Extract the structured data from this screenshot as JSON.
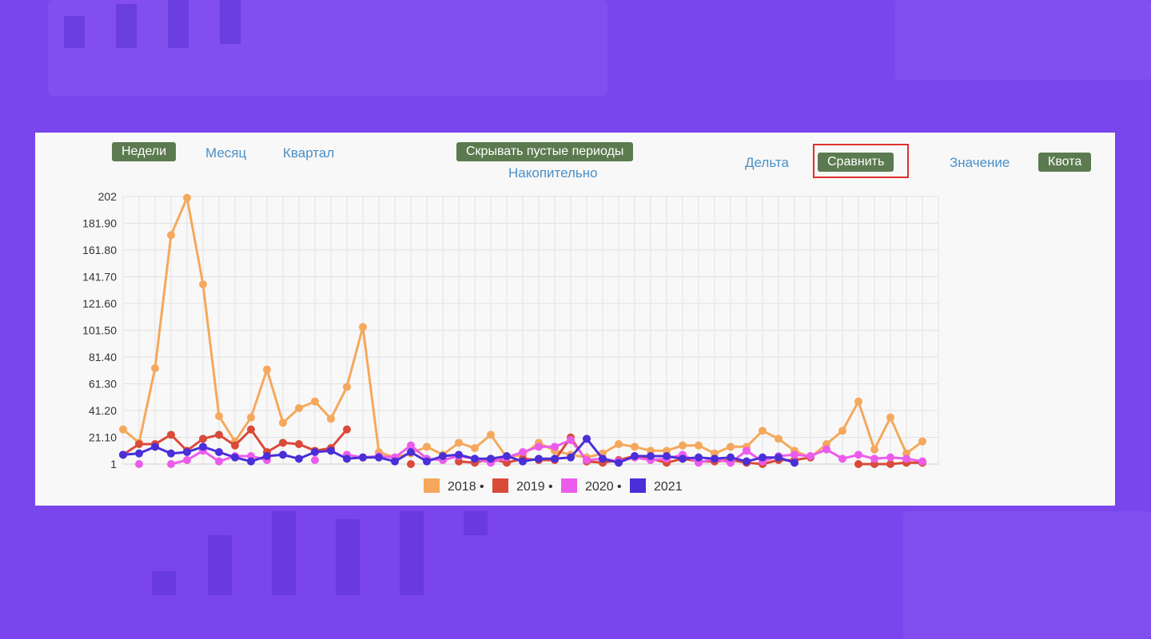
{
  "toolbar": {
    "weeks_label": "Недели",
    "month_label": "Месяц",
    "quarter_label": "Квартал",
    "hide_empty_label": "Скрывать пустые периоды",
    "cumulative_label": "Накопительно",
    "delta_label": "Дельта",
    "compare_label": "Сравнить",
    "value_label": "Значение",
    "quota_label": "Квота"
  },
  "colors": {
    "accent_button": "#5b7a4f",
    "link": "#4a90c8",
    "highlight": "#e0302a"
  },
  "chart_data": {
    "type": "line",
    "title": "",
    "xlabel": "",
    "ylabel": "",
    "ylim": [
      1,
      202
    ],
    "yticks": [
      "202",
      "181.90",
      "161.80",
      "141.70",
      "121.60",
      "101.50",
      "81.40",
      "61.30",
      "41.20",
      "21.10",
      "1"
    ],
    "x": [
      1,
      2,
      3,
      4,
      5,
      6,
      7,
      8,
      9,
      10,
      11,
      12,
      13,
      14,
      15,
      16,
      17,
      18,
      19,
      20,
      21,
      22,
      23,
      24,
      25,
      26,
      27,
      28,
      29,
      30,
      31,
      32,
      33,
      34,
      35,
      36,
      37,
      38,
      39,
      40,
      41,
      42,
      43,
      44,
      45,
      46,
      47,
      48,
      49,
      50,
      51,
      52
    ],
    "grid": true,
    "legend_position": "bottom",
    "series": [
      {
        "name": "2018",
        "color": "#f5a85c",
        "values": [
          27,
          17,
          73,
          173,
          201,
          136,
          37,
          18,
          36,
          72,
          32,
          43,
          48,
          35,
          59,
          104,
          10,
          6,
          9,
          14,
          8,
          17,
          13,
          23,
          6,
          8,
          17,
          11,
          8,
          6,
          9,
          16,
          14,
          11,
          11,
          15,
          15,
          9,
          14,
          14,
          26,
          20,
          11,
          6,
          16,
          26,
          48,
          12,
          36,
          9,
          18,
          null
        ]
      },
      {
        "name": "2019",
        "color": "#d94a3a",
        "values": [
          8,
          16,
          16,
          23,
          11,
          20,
          23,
          15,
          27,
          10,
          17,
          16,
          11,
          13,
          27,
          null,
          null,
          null,
          1,
          null,
          null,
          3,
          2,
          5,
          2,
          5,
          4,
          4,
          21,
          3,
          2,
          4,
          7,
          5,
          2,
          5,
          3,
          3,
          4,
          2,
          1,
          4,
          4,
          6,
          null,
          null,
          1,
          1,
          1,
          2,
          2,
          null
        ]
      },
      {
        "name": "2020",
        "color": "#ec5cec",
        "values": [
          null,
          1,
          null,
          1,
          4,
          11,
          3,
          7,
          7,
          4,
          null,
          null,
          4,
          null,
          8,
          6,
          7,
          6,
          15,
          5,
          4,
          7,
          5,
          2,
          6,
          10,
          14,
          14,
          19,
          4,
          5,
          3,
          6,
          4,
          5,
          8,
          2,
          5,
          2,
          11,
          3,
          7,
          8,
          7,
          12,
          5,
          8,
          5,
          6,
          5,
          3,
          null
        ]
      },
      {
        "name": "2021",
        "color": "#4a2ed8",
        "values": [
          8,
          9,
          14,
          9,
          10,
          14,
          10,
          6,
          3,
          7,
          8,
          5,
          10,
          11,
          5,
          6,
          6,
          3,
          10,
          3,
          7,
          8,
          5,
          5,
          7,
          3,
          5,
          5,
          6,
          20,
          5,
          2,
          7,
          7,
          7,
          5,
          6,
          5,
          6,
          3,
          6,
          6,
          2,
          null,
          null,
          null,
          null,
          null,
          null,
          null,
          null,
          null
        ]
      }
    ]
  }
}
